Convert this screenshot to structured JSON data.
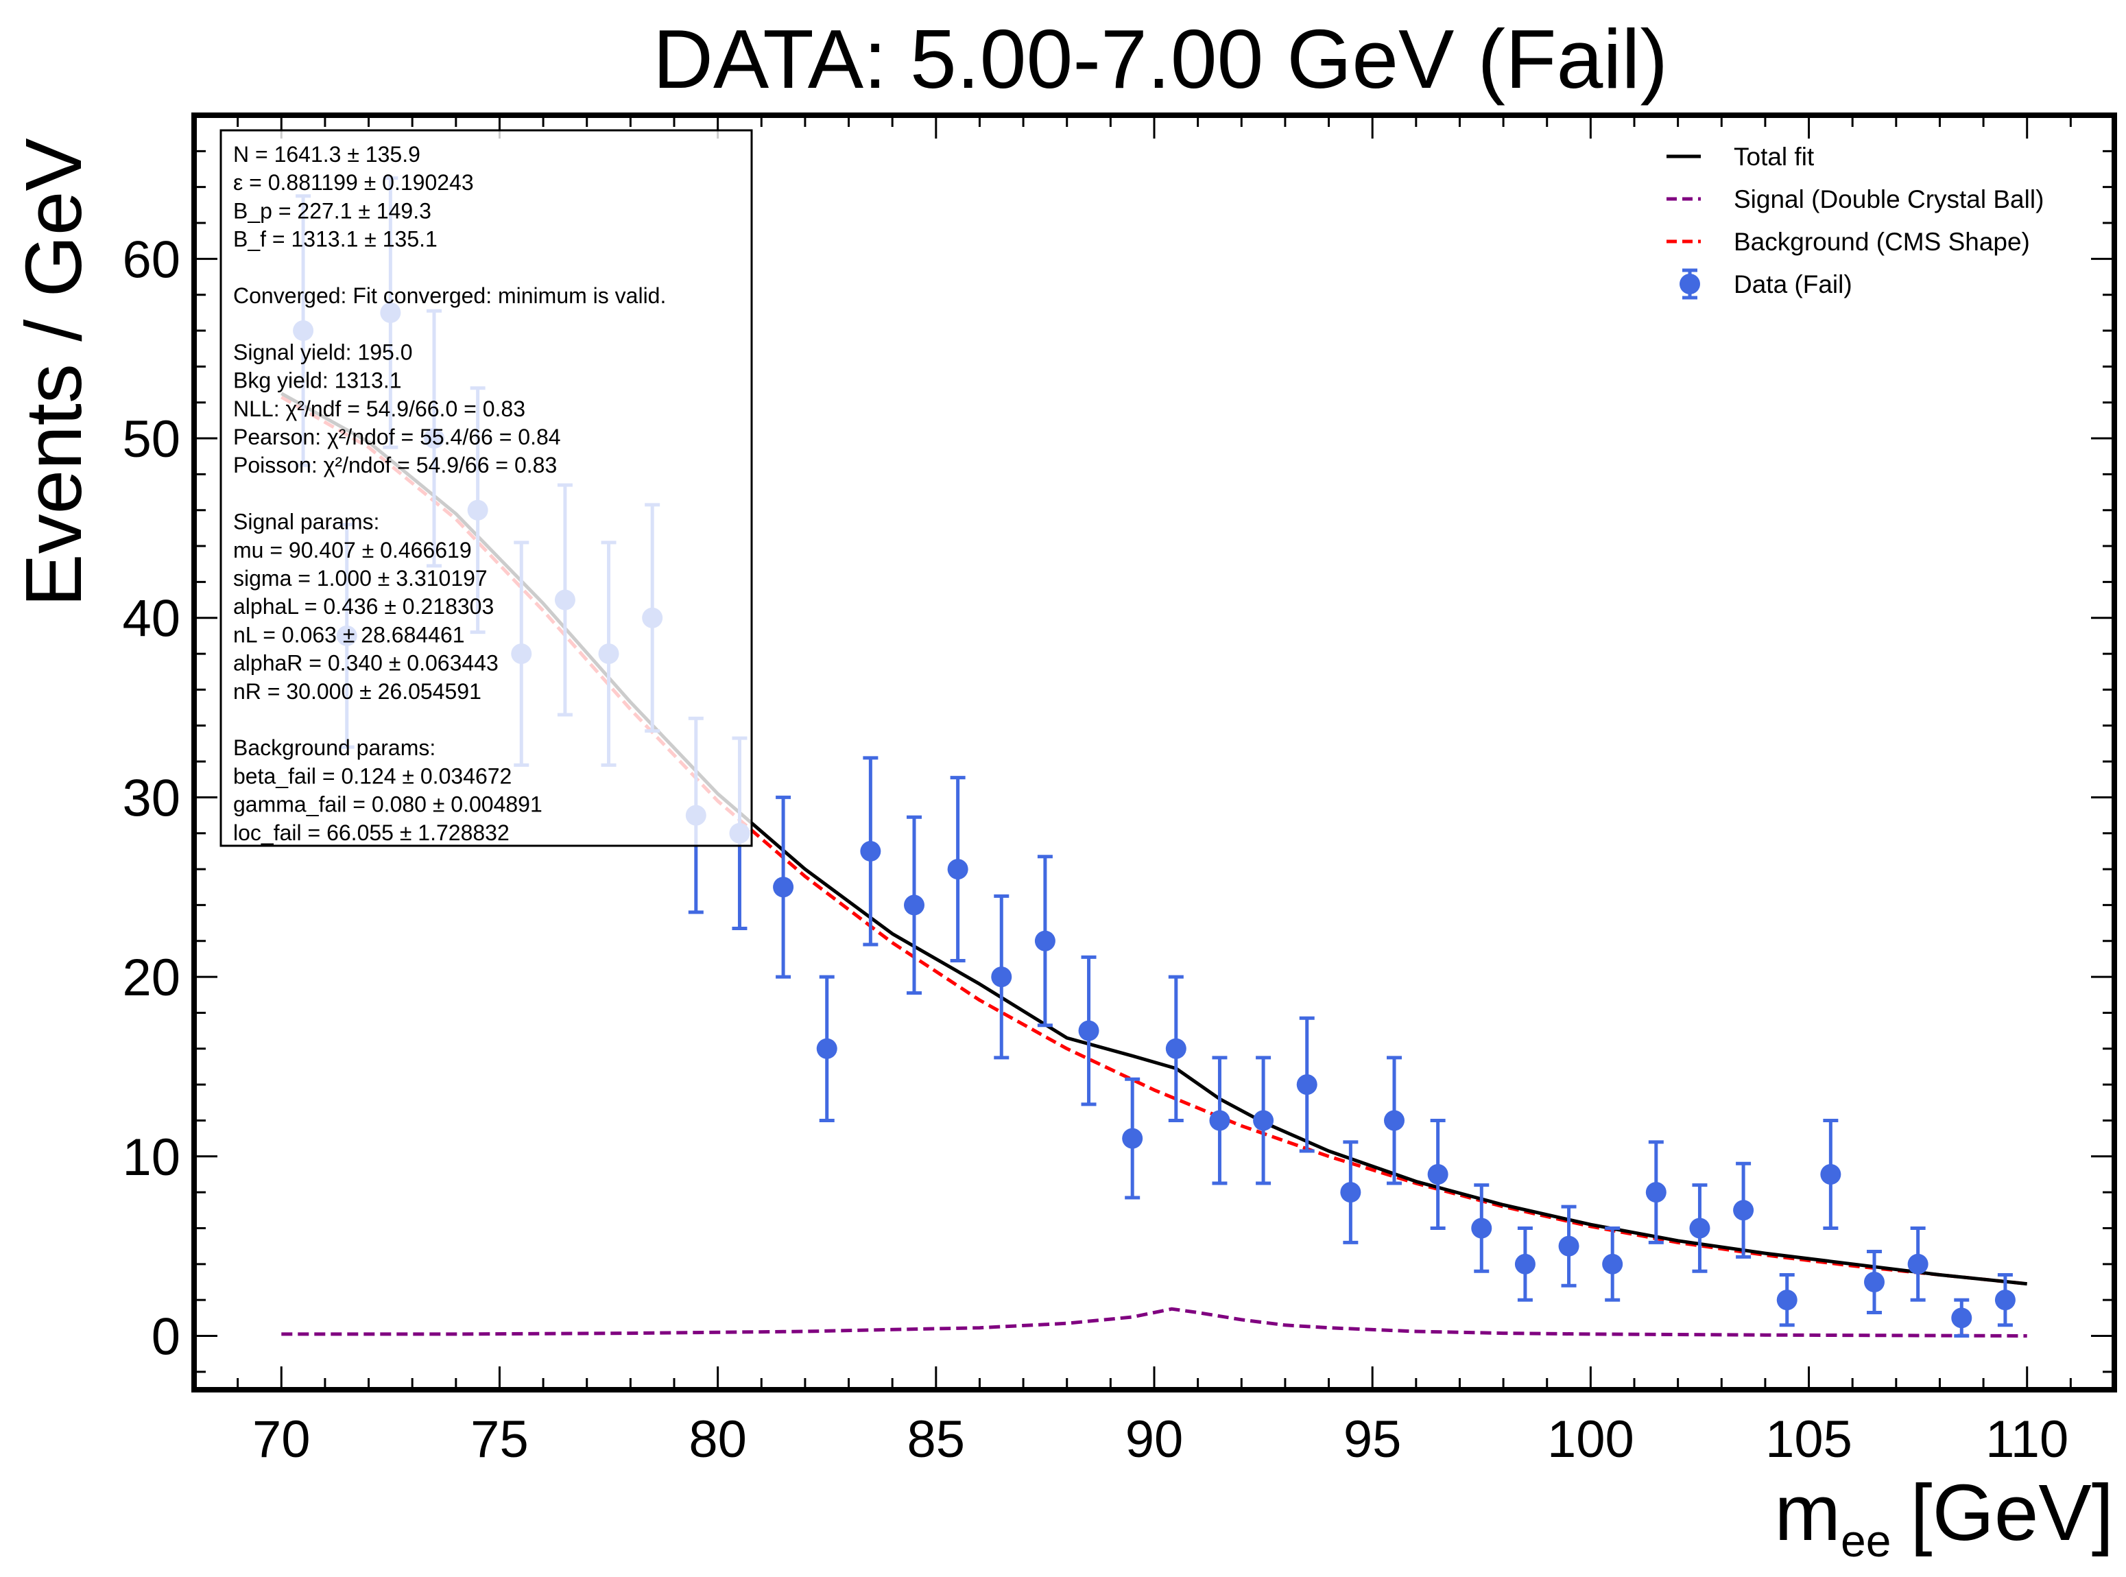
{
  "chart_data": {
    "type": "scatter",
    "title": "DATA: 5.00-7.00 GeV (Fail)",
    "xlabel": "m",
    "xlabel_sub": "ee",
    "xlabel_unit": "[GeV]",
    "ylabel": "Events / GeV",
    "xlim": [
      68,
      112
    ],
    "ylim": [
      -3,
      68
    ],
    "xticks": [
      "70",
      "75",
      "80",
      "85",
      "90",
      "95",
      "100",
      "105",
      "110"
    ],
    "yticks": [
      "0",
      "10",
      "20",
      "30",
      "40",
      "50",
      "60"
    ],
    "legend_placement": "top-right",
    "legend": [
      {
        "label": "Total fit",
        "style": "solid",
        "color": "#000000"
      },
      {
        "label": "Signal (Double Crystal Ball)",
        "style": "dashed",
        "color": "#800080"
      },
      {
        "label": "Background (CMS Shape)",
        "style": "dashed",
        "color": "#ff0000"
      },
      {
        "label": "Data (Fail)",
        "style": "errorbar",
        "color": "#4169e1"
      }
    ],
    "series": [
      {
        "name": "Data (Fail)",
        "kind": "errorbar",
        "color": "#4169e1",
        "x": [
          70.5,
          71.5,
          72.5,
          73.5,
          74.5,
          75.5,
          76.5,
          77.5,
          78.5,
          79.5,
          80.5,
          81.5,
          82.5,
          83.5,
          84.5,
          85.5,
          86.5,
          87.5,
          88.5,
          89.5,
          90.5,
          91.5,
          92.5,
          93.5,
          94.5,
          95.5,
          96.5,
          97.5,
          98.5,
          99.5,
          100.5,
          101.5,
          102.5,
          103.5,
          104.5,
          105.5,
          106.5,
          107.5,
          108.5,
          109.5
        ],
        "y": [
          56,
          39,
          57,
          50,
          46,
          38,
          41,
          38,
          40,
          29,
          28,
          25,
          16,
          27,
          24,
          26,
          20,
          22,
          17,
          11,
          16,
          12,
          12,
          14,
          8,
          12,
          9,
          6,
          4,
          5,
          4,
          8,
          6,
          7,
          2,
          9,
          3,
          4,
          1,
          2
        ],
        "yerr": [
          7.5,
          6.2,
          7.5,
          7.1,
          6.8,
          6.2,
          6.4,
          6.2,
          6.3,
          5.4,
          5.3,
          5.0,
          4.0,
          5.2,
          4.9,
          5.1,
          4.5,
          4.7,
          4.1,
          3.3,
          4.0,
          3.5,
          3.5,
          3.7,
          2.8,
          3.5,
          3.0,
          2.4,
          2.0,
          2.2,
          2.0,
          2.8,
          2.4,
          2.6,
          1.4,
          3.0,
          1.7,
          2.0,
          1.0,
          1.4
        ]
      },
      {
        "name": "Total fit",
        "kind": "line",
        "color": "#000000",
        "x": [
          70,
          72,
          74,
          76,
          78,
          80,
          82,
          84,
          86,
          88,
          89.5,
          90.5,
          91.5,
          92.5,
          94,
          96,
          98,
          100,
          102,
          104,
          106,
          108,
          110
        ],
        "y": [
          52.5,
          49.8,
          45.8,
          40.8,
          35.3,
          30.2,
          26.0,
          22.4,
          19.6,
          16.6,
          15.6,
          14.9,
          13.2,
          11.9,
          10.3,
          8.6,
          7.3,
          6.2,
          5.3,
          4.6,
          4.0,
          3.4,
          2.9
        ]
      },
      {
        "name": "Background (CMS Shape)",
        "kind": "dashed",
        "color": "#ff0000",
        "x": [
          70,
          72,
          74,
          76,
          78,
          80,
          82,
          84,
          86,
          88,
          90,
          92,
          94,
          96,
          98,
          100,
          102,
          104,
          106,
          108,
          110
        ],
        "y": [
          52.3,
          49.5,
          45.5,
          40.4,
          34.9,
          29.8,
          25.6,
          21.9,
          18.7,
          16.0,
          13.7,
          11.7,
          10.0,
          8.5,
          7.2,
          6.1,
          5.2,
          4.5,
          3.9,
          3.4,
          2.9
        ]
      },
      {
        "name": "Signal (Double Crystal Ball)",
        "kind": "dashed",
        "color": "#800080",
        "x": [
          70,
          74,
          78,
          82,
          84,
          86,
          88,
          89.5,
          90.4,
          91,
          92,
          93,
          94,
          96,
          98,
          100,
          104,
          110
        ],
        "y": [
          0.1,
          0.1,
          0.15,
          0.25,
          0.35,
          0.45,
          0.7,
          1.05,
          1.5,
          1.3,
          0.9,
          0.6,
          0.45,
          0.25,
          0.15,
          0.1,
          0.05,
          0.0
        ]
      }
    ],
    "info_box": [
      "N = 1641.3 ± 135.9",
      "ε = 0.881199 ± 0.190243",
      "B_p = 227.1 ± 149.3",
      "B_f = 1313.1 ± 135.1",
      "",
      "Converged: Fit converged: minimum is valid.",
      "",
      "Signal yield: 195.0",
      "Bkg yield: 1313.1",
      "NLL: χ²/ndf = 54.9/66.0 = 0.83",
      "Pearson: χ²/ndof = 55.4/66 = 0.84",
      "Poisson: χ²/ndof = 54.9/66 = 0.83",
      "",
      "Signal params:",
      "mu = 90.407 ± 0.466619",
      "sigma = 1.000 ± 3.310197",
      "alphaL = 0.436 ± 0.218303",
      "nL = 0.063 ± 28.684461",
      "alphaR = 0.340 ± 0.063443",
      "nR = 30.000 ± 26.054591",
      "",
      "Background params:",
      "beta_fail = 0.124 ± 0.034672",
      "gamma_fail = 0.080 ± 0.004891",
      "loc_fail = 66.055 ± 1.728832"
    ]
  }
}
